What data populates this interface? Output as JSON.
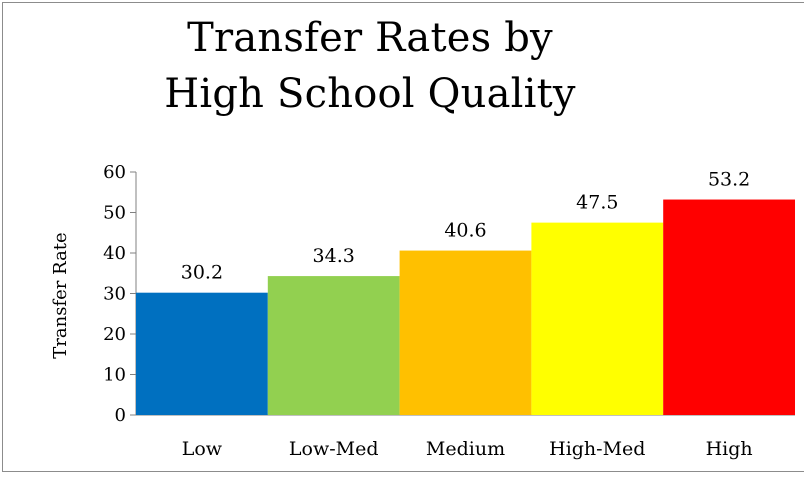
{
  "chart_data": {
    "type": "bar",
    "title_lines": [
      "Transfer Rates by",
      "High School Quality"
    ],
    "xlabel": "",
    "ylabel": "Transfer Rate",
    "categories": [
      "Low",
      "Low-Med",
      "Medium",
      "High-Med",
      "High"
    ],
    "values": [
      30.2,
      34.3,
      40.6,
      47.5,
      53.2
    ],
    "data_labels": [
      "30.2",
      "34.3",
      "40.6",
      "47.5",
      "53.2"
    ],
    "colors": [
      "#0070C0",
      "#92D050",
      "#FFC000",
      "#FFFF00",
      "#FF0000"
    ],
    "ylim": [
      0,
      60
    ],
    "yticks": [
      0,
      10,
      20,
      30,
      40,
      50,
      60
    ],
    "grid": false,
    "legend": "none"
  }
}
